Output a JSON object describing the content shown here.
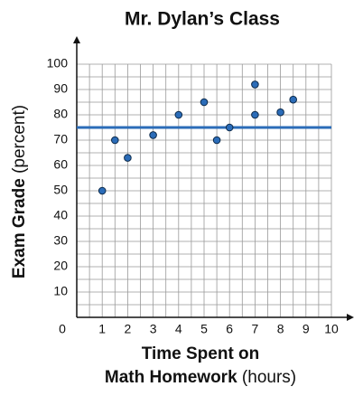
{
  "chart_data": {
    "type": "scatter",
    "title": "Mr. Dylan’s Class",
    "x_label_lines": [
      "Time Spent on",
      "Math Homework"
    ],
    "x_label_unit": "(hours)",
    "y_label": "Exam Grade",
    "y_label_unit": "(percent)",
    "x": [
      1,
      1.5,
      2,
      3,
      4,
      5,
      5.5,
      6,
      7,
      7,
      8,
      8.5
    ],
    "values": [
      50,
      70,
      63,
      72,
      80,
      85,
      70,
      75,
      92,
      80,
      81,
      86
    ],
    "color": "#2b6cb8",
    "reference_line": 75,
    "reference_color": "#2b6cb8",
    "xlim": [
      0,
      10
    ],
    "ylim": [
      0,
      100
    ],
    "xticks": [
      0,
      1,
      2,
      3,
      4,
      5,
      6,
      7,
      8,
      9,
      10
    ],
    "yticks": [
      10,
      20,
      30,
      40,
      50,
      60,
      70,
      80,
      90,
      100
    ],
    "grid": true
  }
}
